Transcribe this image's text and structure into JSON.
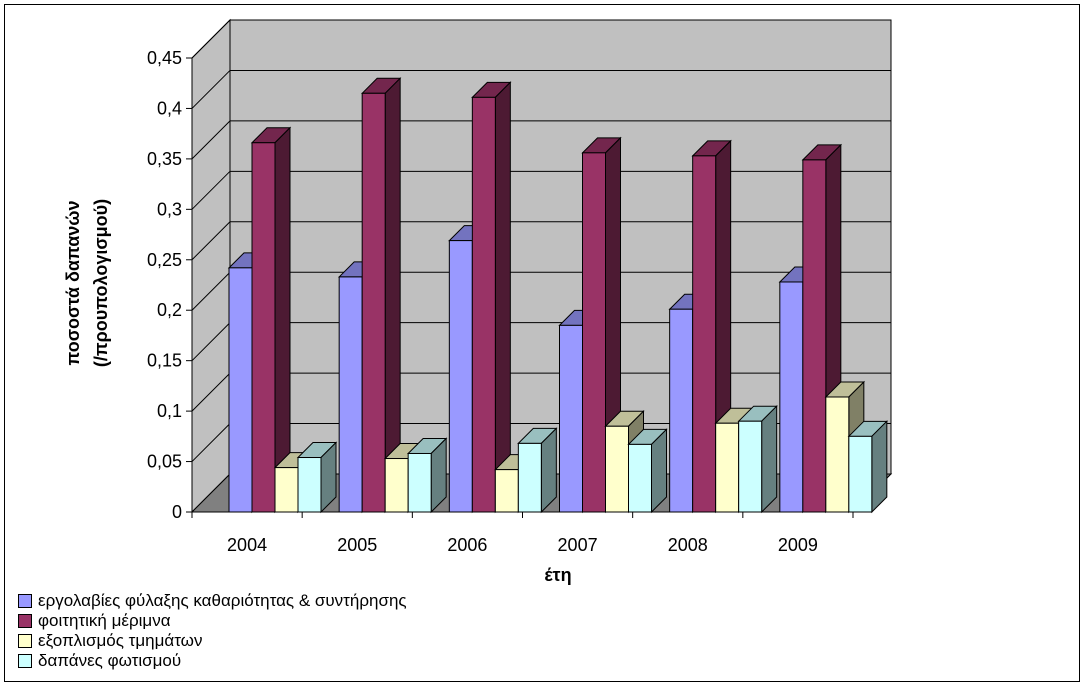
{
  "chart_data": {
    "type": "bar",
    "style": "3d-clustered-column",
    "categories": [
      "2004",
      "2005",
      "2006",
      "2007",
      "2008",
      "2009"
    ],
    "series": [
      {
        "name": "εργολαβίες φύλαξης καθαριότητας & συντήρησης",
        "color": "#9999ff",
        "values": [
          0.242,
          0.233,
          0.269,
          0.185,
          0.201,
          0.228
        ]
      },
      {
        "name": "φοιτητική μέριμνα",
        "color": "#993366",
        "values": [
          0.366,
          0.415,
          0.411,
          0.356,
          0.353,
          0.349
        ]
      },
      {
        "name": "εξοπλισμός τμημάτων",
        "color": "#ffffcc",
        "values": [
          0.044,
          0.053,
          0.042,
          0.085,
          0.088,
          0.114
        ]
      },
      {
        "name": "δαπάνες φωτισμού",
        "color": "#ccffff",
        "values": [
          0.054,
          0.058,
          0.068,
          0.067,
          0.09,
          0.075
        ]
      }
    ],
    "xlabel": "έτη",
    "ylabel_lines": [
      "ποσοστά δαπανών",
      "(/προυπολογισμού)"
    ],
    "y_ticks": [
      "0",
      "0,05",
      "0,1",
      "0,15",
      "0,2",
      "0,25",
      "0,3",
      "0,35",
      "0,4",
      "0,45"
    ],
    "ylim": [
      0,
      0.45
    ],
    "grid": true,
    "wall_color": "#c0c0c0",
    "floor_color": "#808080",
    "legend_position": "bottom-left"
  }
}
